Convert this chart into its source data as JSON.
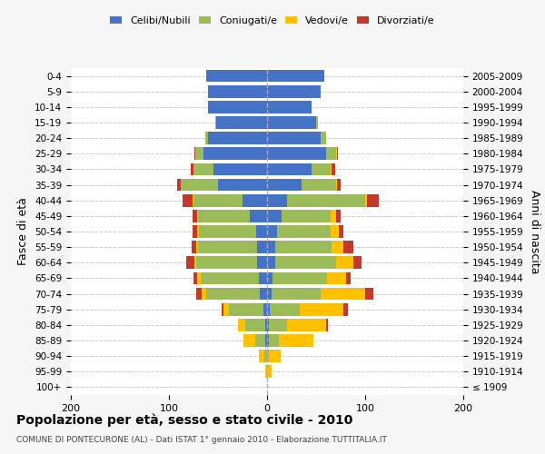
{
  "age_groups": [
    "100+",
    "95-99",
    "90-94",
    "85-89",
    "80-84",
    "75-79",
    "70-74",
    "65-69",
    "60-64",
    "55-59",
    "50-54",
    "45-49",
    "40-44",
    "35-39",
    "30-34",
    "25-29",
    "20-24",
    "15-19",
    "10-14",
    "5-9",
    "0-4"
  ],
  "birth_years": [
    "≤ 1909",
    "1910-1914",
    "1915-1919",
    "1920-1924",
    "1925-1929",
    "1930-1934",
    "1935-1939",
    "1940-1944",
    "1945-1949",
    "1950-1954",
    "1955-1959",
    "1960-1964",
    "1965-1969",
    "1970-1974",
    "1975-1979",
    "1980-1984",
    "1985-1989",
    "1990-1994",
    "1995-1999",
    "2000-2004",
    "2005-2009"
  ],
  "colors": {
    "celibi": "#4472C4",
    "coniugati": "#9BBB59",
    "vedovi": "#FFC000",
    "divorziati": "#C0392B"
  },
  "males": {
    "celibi": [
      0,
      0,
      0,
      2,
      2,
      4,
      7,
      8,
      10,
      10,
      11,
      18,
      25,
      50,
      55,
      65,
      60,
      52,
      60,
      60,
      62
    ],
    "coniugati": [
      0,
      0,
      3,
      10,
      20,
      35,
      55,
      60,
      62,
      60,
      58,
      52,
      50,
      38,
      20,
      8,
      3,
      1,
      0,
      0,
      0
    ],
    "vedovi": [
      0,
      2,
      5,
      12,
      8,
      5,
      5,
      3,
      2,
      2,
      2,
      1,
      1,
      0,
      0,
      0,
      0,
      0,
      0,
      0,
      0
    ],
    "divorziati": [
      0,
      0,
      0,
      0,
      0,
      2,
      5,
      4,
      8,
      5,
      5,
      5,
      10,
      4,
      3,
      1,
      0,
      0,
      0,
      0,
      0
    ]
  },
  "females": {
    "nubili": [
      0,
      0,
      0,
      2,
      2,
      3,
      5,
      6,
      8,
      8,
      10,
      15,
      20,
      35,
      45,
      60,
      55,
      50,
      45,
      55,
      58
    ],
    "coniugati": [
      0,
      0,
      2,
      10,
      18,
      30,
      50,
      55,
      62,
      58,
      55,
      50,
      80,
      35,
      20,
      10,
      5,
      2,
      0,
      0,
      0
    ],
    "vedovi": [
      0,
      5,
      12,
      35,
      40,
      45,
      45,
      20,
      18,
      12,
      8,
      5,
      2,
      1,
      1,
      1,
      0,
      0,
      0,
      0,
      0
    ],
    "divorziati": [
      0,
      0,
      0,
      0,
      2,
      4,
      8,
      4,
      8,
      10,
      5,
      5,
      12,
      4,
      3,
      1,
      0,
      0,
      0,
      0,
      0
    ]
  },
  "title": "Popolazione per età, sesso e stato civile - 2010",
  "subtitle": "COMUNE DI PONTECURONE (AL) - Dati ISTAT 1° gennaio 2010 - Elaborazione TUTTITALIA.IT",
  "ylabel_left": "Fasce di età",
  "ylabel_right": "Anni di nascita",
  "xlim": 200,
  "bg_color": "#f5f5f5",
  "plot_bg": "#ffffff",
  "grid_color": "#cccccc"
}
